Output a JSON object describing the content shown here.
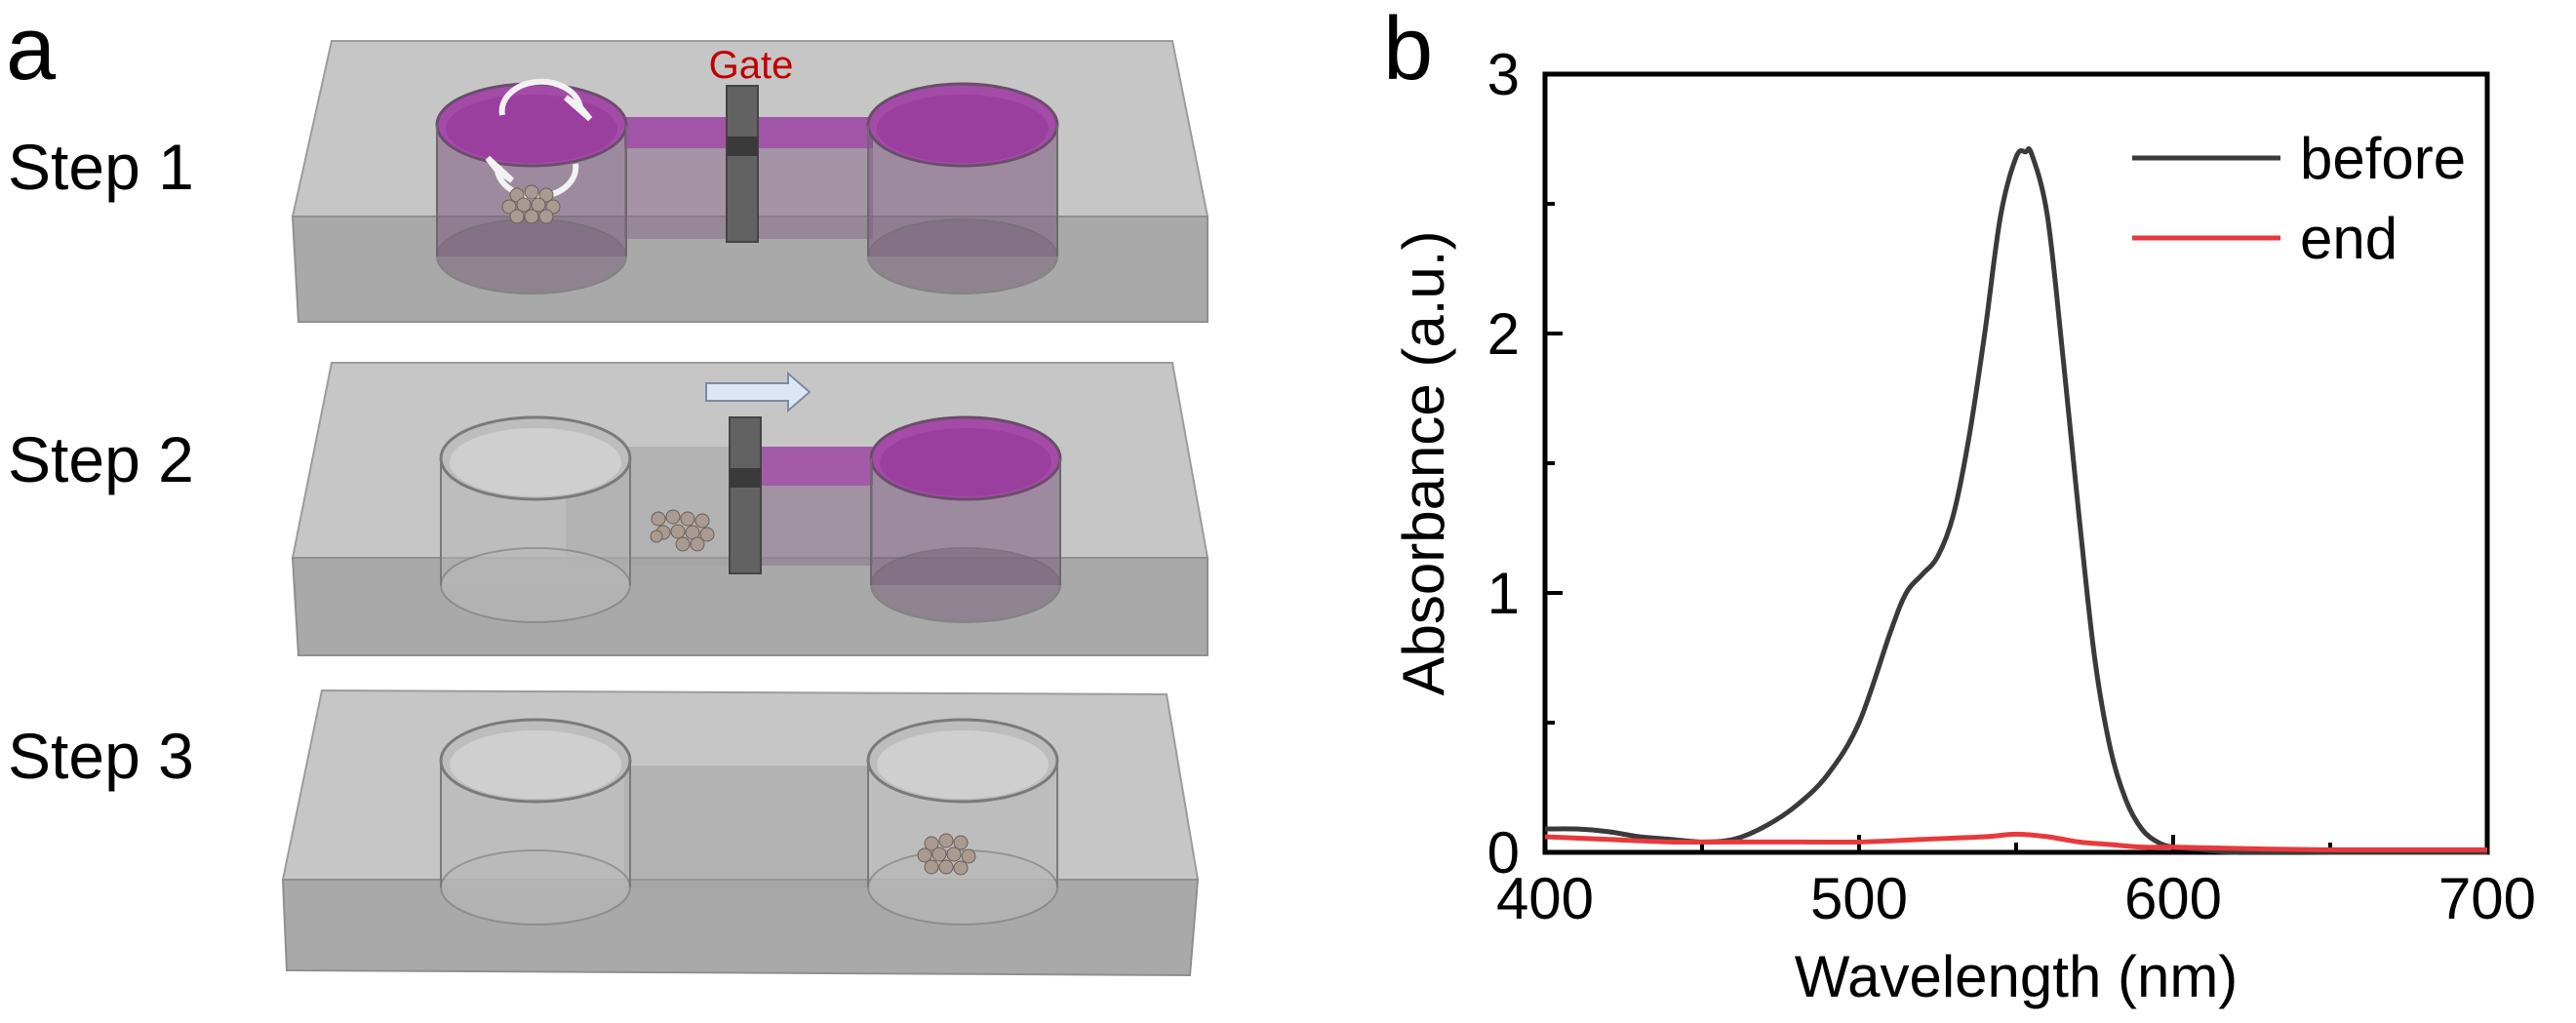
{
  "panel_a": {
    "letter": "a",
    "gate_label": "Gate",
    "steps": [
      "Step 1",
      "Step 2",
      "Step 3"
    ]
  },
  "panel_b": {
    "letter": "b"
  },
  "colors": {
    "before": "#3a3a3a",
    "end": "#e8393c",
    "gate_text": "#c00000",
    "liquid": "#9b3a9e",
    "chip": "#c4c4c4"
  },
  "chart_data": {
    "type": "line",
    "xlabel": "Wavelength (nm)",
    "ylabel": "Absorbance (a.u.)",
    "xlim": [
      400,
      700
    ],
    "ylim": [
      0,
      3
    ],
    "xticks": [
      400,
      500,
      600,
      700
    ],
    "yticks": [
      0,
      1,
      2,
      3
    ],
    "grid": false,
    "legend_position": "top-right",
    "series": [
      {
        "name": "before",
        "x": [
          400,
          410,
          420,
          430,
          440,
          450,
          460,
          470,
          480,
          490,
          500,
          510,
          515,
          520,
          525,
          530,
          535,
          540,
          545,
          550,
          553,
          555,
          560,
          565,
          570,
          575,
          580,
          585,
          590,
          595,
          600,
          610,
          620,
          650,
          700
        ],
        "y": [
          0.09,
          0.09,
          0.08,
          0.06,
          0.05,
          0.04,
          0.05,
          0.1,
          0.18,
          0.3,
          0.5,
          0.85,
          1.0,
          1.07,
          1.14,
          1.3,
          1.6,
          2.0,
          2.45,
          2.68,
          2.7,
          2.69,
          2.45,
          1.9,
          1.3,
          0.75,
          0.4,
          0.2,
          0.09,
          0.04,
          0.02,
          0.01,
          0.0,
          0.0,
          0.0
        ]
      },
      {
        "name": "end",
        "x": [
          400,
          420,
          440,
          460,
          480,
          500,
          520,
          540,
          550,
          560,
          570,
          580,
          590,
          600,
          620,
          650,
          700
        ],
        "y": [
          0.06,
          0.05,
          0.04,
          0.04,
          0.04,
          0.04,
          0.05,
          0.06,
          0.07,
          0.06,
          0.04,
          0.03,
          0.02,
          0.02,
          0.015,
          0.01,
          0.01
        ]
      }
    ]
  }
}
